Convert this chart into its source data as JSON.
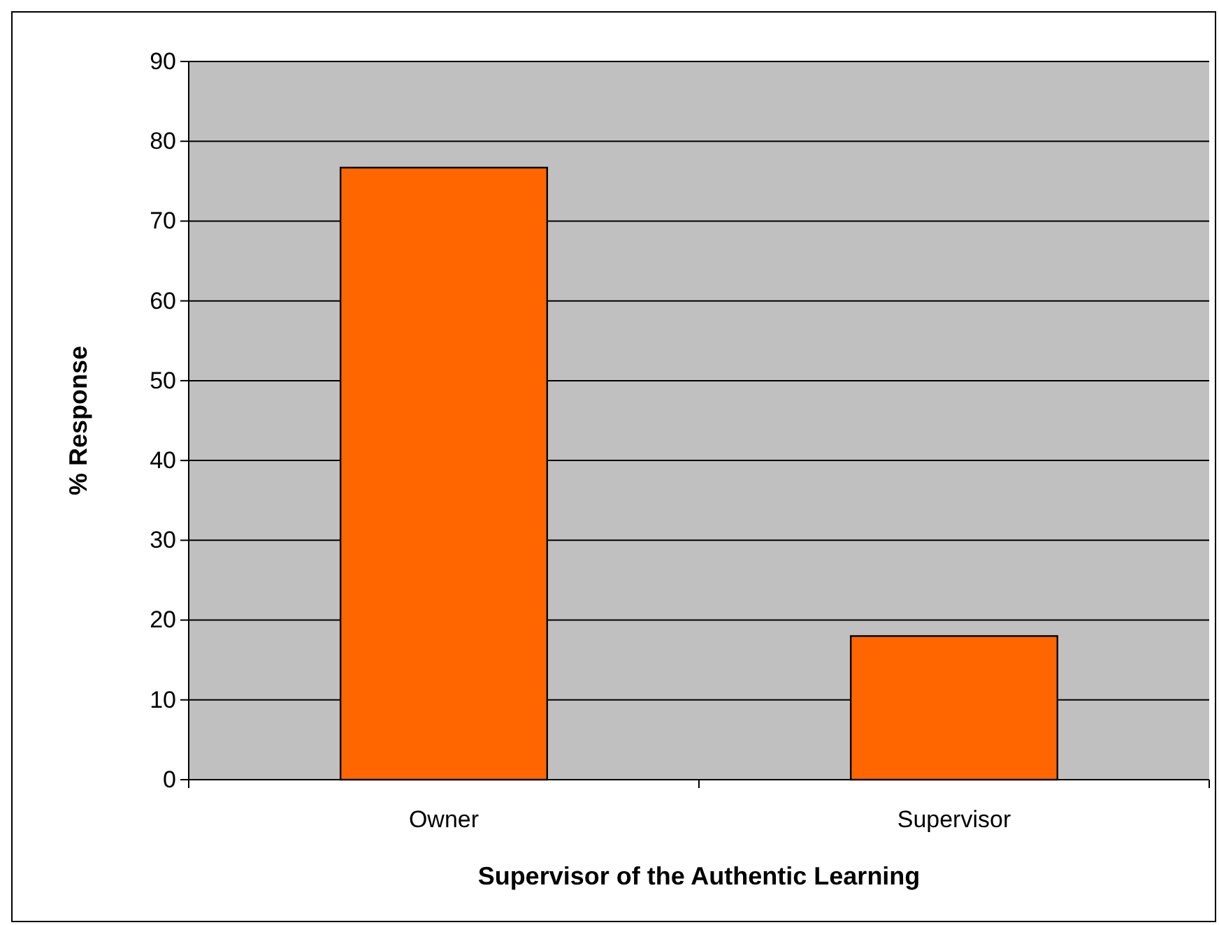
{
  "chart_data": {
    "type": "bar",
    "xlabel": "Supervisor of the Authentic Learning",
    "ylabel": "% Response",
    "categories": [
      "Owner",
      "Supervisor"
    ],
    "values": [
      76.7,
      18
    ],
    "color": "#ff6600",
    "ylim": [
      0,
      90
    ],
    "yticks": [
      0,
      10,
      20,
      30,
      40,
      50,
      60,
      70,
      80,
      90
    ],
    "grid": "y"
  }
}
